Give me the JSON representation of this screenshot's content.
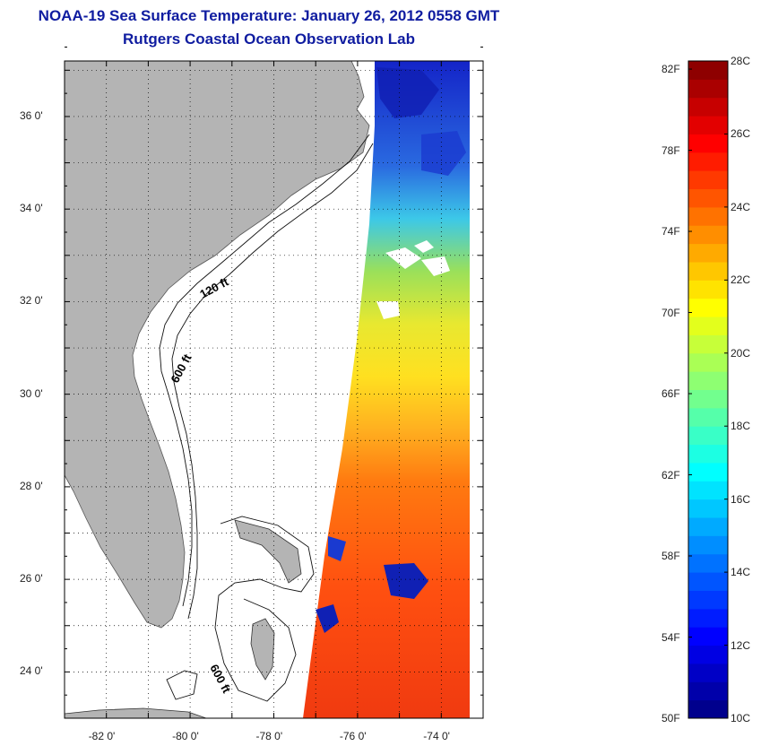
{
  "header": {
    "title": "NOAA-19 Sea Surface Temperature:  January 26, 2012 0558 GMT",
    "subtitle": "Rutgers Coastal Ocean Observation Lab"
  },
  "map": {
    "lat_ticks": [
      {
        "value": 36,
        "label": "36 0'"
      },
      {
        "value": 34,
        "label": "34 0'"
      },
      {
        "value": 32,
        "label": "32 0'"
      },
      {
        "value": 30,
        "label": "30 0'"
      },
      {
        "value": 28,
        "label": "28 0'"
      },
      {
        "value": 26,
        "label": "26 0'"
      },
      {
        "value": 24,
        "label": "24 0'"
      }
    ],
    "lon_ticks": [
      {
        "value": -82,
        "label": "-82 0'"
      },
      {
        "value": -80,
        "label": "-80 0'"
      },
      {
        "value": -78,
        "label": "-78 0'"
      },
      {
        "value": -76,
        "label": "-76 0'"
      },
      {
        "value": -74,
        "label": "-74 0'"
      }
    ],
    "lat_range": [
      23,
      37.2
    ],
    "lon_range": [
      -83,
      -73
    ],
    "contour_labels": [
      "120 ft",
      "600 ft",
      "600 ft"
    ],
    "colors": {
      "land": "#b4b4b4",
      "water": "#ffffff",
      "frame": "#000000"
    }
  },
  "colorbar": {
    "fahrenheit_labels": [
      "82F",
      "78F",
      "74F",
      "70F",
      "66F",
      "62F",
      "58F",
      "54F",
      "50F"
    ],
    "celsius_labels": [
      "28C",
      "26C",
      "24C",
      "22C",
      "20C",
      "18C",
      "16C",
      "14C",
      "12C",
      "10C"
    ],
    "range_c": [
      10,
      28
    ],
    "colors": [
      "#00007f",
      "#0000ff",
      "#0080ff",
      "#00ffff",
      "#80ff80",
      "#ffff00",
      "#ff8000",
      "#ff0000",
      "#800000"
    ]
  }
}
